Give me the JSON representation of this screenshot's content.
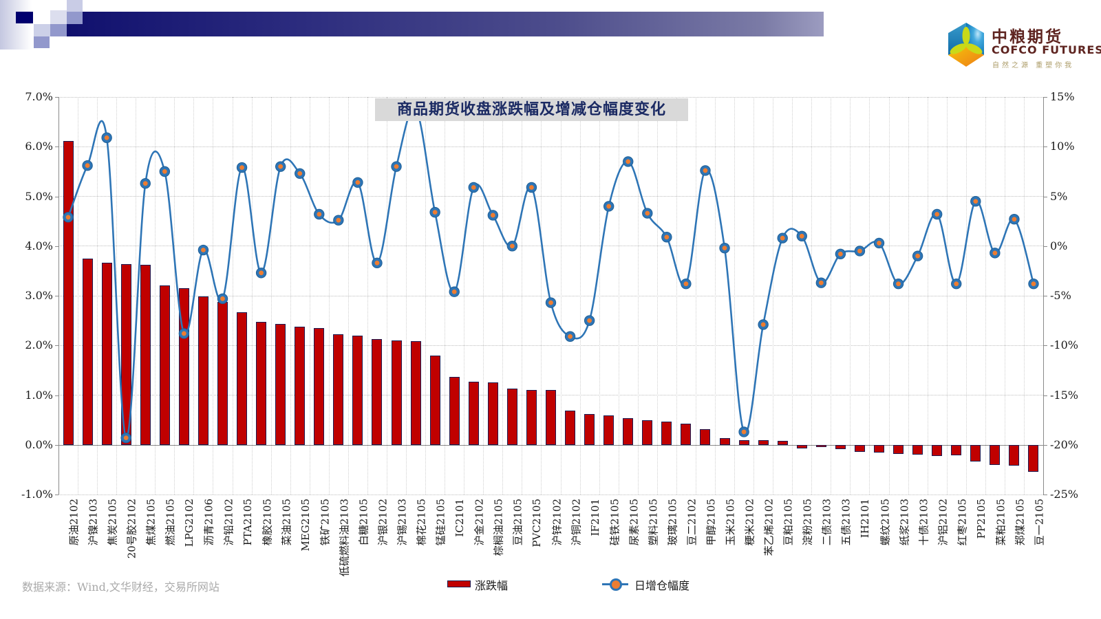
{
  "header": {
    "logo": {
      "brand_cn": "中粮期货",
      "brand_en": "COFCO FUTURES",
      "tagline": "自然之源  重塑你我"
    }
  },
  "chart_data": {
    "type": "bar+line",
    "title": "商品期货收盘涨跌幅及增减仓幅度变化",
    "grid": true,
    "legend_position": "bottom",
    "categories": [
      "原油2102",
      "沪镍2103",
      "焦炭2105",
      "20号胶2102",
      "焦煤2105",
      "燃油2105",
      "LPG2102",
      "沥青2106",
      "沪铅2102",
      "PTA2105",
      "橡胶2105",
      "菜油2105",
      "MEG2105",
      "铁矿2105",
      "低硫燃料油2103",
      "白糖2105",
      "沪银2102",
      "沪锡2103",
      "棉花2105",
      "锰硅2105",
      "IC2101",
      "沪金2102",
      "棕榈油2105",
      "豆油2105",
      "PVC2105",
      "沪锌2102",
      "沪铜2102",
      "IF2101",
      "硅铁2105",
      "尿素2105",
      "塑料2105",
      "玻璃2105",
      "豆二2102",
      "甲醇2105",
      "玉米2105",
      "粳米2102",
      "苯乙烯2102",
      "豆粕2105",
      "淀粉2105",
      "二债2103",
      "五债2103",
      "IH2101",
      "螺纹2105",
      "纸浆2103",
      "十债2103",
      "沪铝2102",
      "红枣2105",
      "PP2105",
      "菜粕2105",
      "郑煤2105",
      "豆一2105"
    ],
    "series": [
      {
        "name": "涨跌幅",
        "type": "bar",
        "axis": "left",
        "color": "#C00000",
        "values": [
          6.12,
          3.75,
          3.66,
          3.63,
          3.62,
          3.21,
          3.15,
          2.99,
          2.87,
          2.67,
          2.47,
          2.43,
          2.38,
          2.35,
          2.23,
          2.2,
          2.13,
          2.1,
          2.09,
          1.8,
          1.36,
          1.27,
          1.25,
          1.13,
          1.1,
          1.1,
          0.69,
          0.62,
          0.59,
          0.53,
          0.5,
          0.47,
          0.43,
          0.32,
          0.13,
          0.1,
          0.09,
          0.08,
          -0.07,
          -0.05,
          -0.09,
          -0.14,
          -0.16,
          -0.18,
          -0.2,
          -0.22,
          -0.21,
          -0.33,
          -0.41,
          -0.42,
          -0.55
        ]
      },
      {
        "name": "日增仓幅度",
        "type": "line",
        "axis": "right",
        "color": "#2E75B6",
        "marker_color": "#ED7D31",
        "values": [
          2.9,
          8.1,
          10.9,
          -19.3,
          6.3,
          7.5,
          -8.8,
          -0.4,
          -5.3,
          7.9,
          -2.7,
          8.0,
          7.3,
          3.2,
          2.6,
          6.4,
          -1.7,
          8.0,
          13.8,
          3.4,
          -4.6,
          5.9,
          3.1,
          0.0,
          5.9,
          -5.7,
          -9.1,
          -7.5,
          4.0,
          8.5,
          3.3,
          0.9,
          -3.8,
          7.6,
          -0.2,
          -18.7,
          -7.9,
          0.8,
          1.0,
          -3.7,
          -0.8,
          -0.5,
          0.3,
          -3.8,
          -1.0,
          3.2,
          -3.8,
          4.5,
          -0.7,
          2.7,
          -3.8
        ]
      }
    ],
    "left_axis": {
      "min": -1,
      "max": 7,
      "tick_step": 1,
      "labels": [
        "7.0%",
        "6.0%",
        "5.0%",
        "4.0%",
        "3.0%",
        "2.0%",
        "1.0%",
        "0.0%",
        "-1.0%"
      ]
    },
    "right_axis": {
      "min": -25,
      "max": 15,
      "tick_step": 5,
      "labels": [
        "15%",
        "10%",
        "5%",
        "0%",
        "-5%",
        "-10%",
        "-15%",
        "-20%",
        "-25%"
      ]
    }
  },
  "legend": {
    "bar_label": "涨跌幅",
    "line_label": "日增仓幅度"
  },
  "footer": {
    "source": "数据来源：Wind,文华财经，交易所网站"
  }
}
